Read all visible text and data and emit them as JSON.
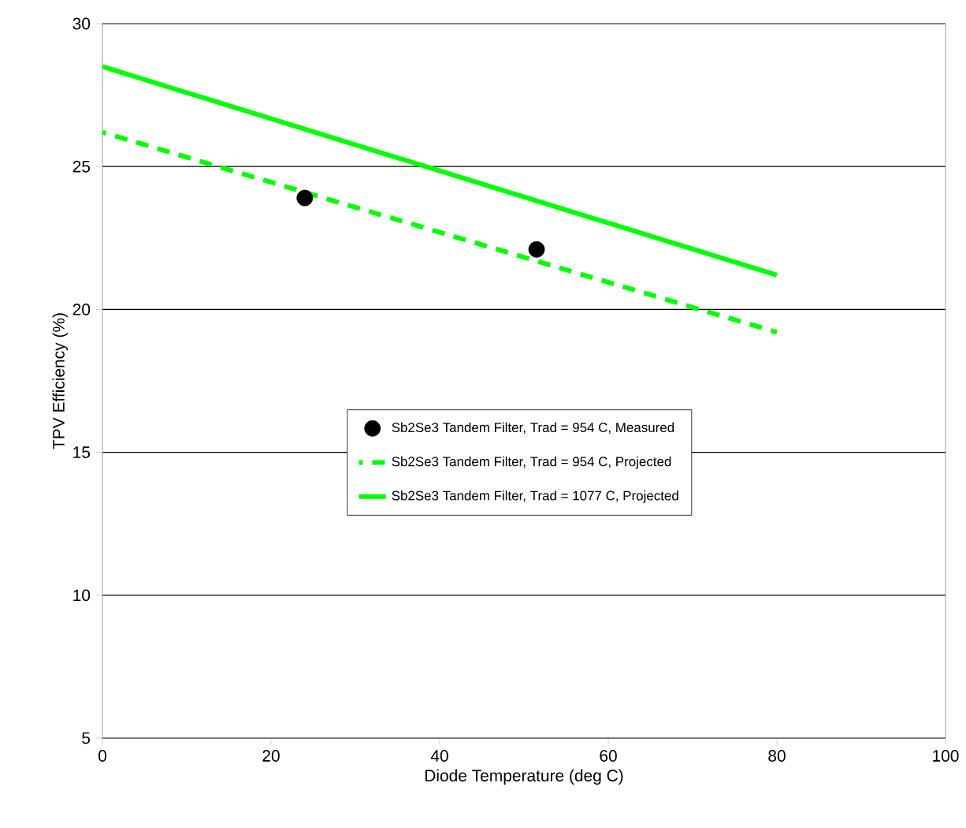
{
  "chart_data": {
    "type": "line",
    "xlabel": "Diode Temperature (deg C)",
    "ylabel": "TPV Efficiency (%)",
    "xlim": [
      0,
      100
    ],
    "ylim": [
      5,
      30
    ],
    "xticks": [
      0,
      20,
      40,
      60,
      80,
      100
    ],
    "yticks": [
      5,
      10,
      15,
      20,
      25,
      30
    ],
    "grid": "y",
    "legend": "right",
    "series": [
      {
        "name": "Sb2Se3 Tandem Filter, Trad = 954 C, Measured",
        "type": "scatter",
        "marker": "circle",
        "color": "#000000",
        "x": [
          24,
          51.5
        ],
        "values": [
          23.9,
          22.1
        ]
      },
      {
        "name": "Sb2Se3 Tandem Filter, Trad = 954 C, Projected",
        "line_style": "dashed",
        "color": "#00ff00",
        "x": [
          0,
          80
        ],
        "values": [
          26.2,
          19.2
        ]
      },
      {
        "name": "Sb2Se3 Tandem Filter, Trad = 1077 C, Projected",
        "line_style": "solid",
        "color": "#00ff00",
        "x": [
          0,
          80
        ],
        "values": [
          28.5,
          21.2
        ]
      }
    ]
  }
}
